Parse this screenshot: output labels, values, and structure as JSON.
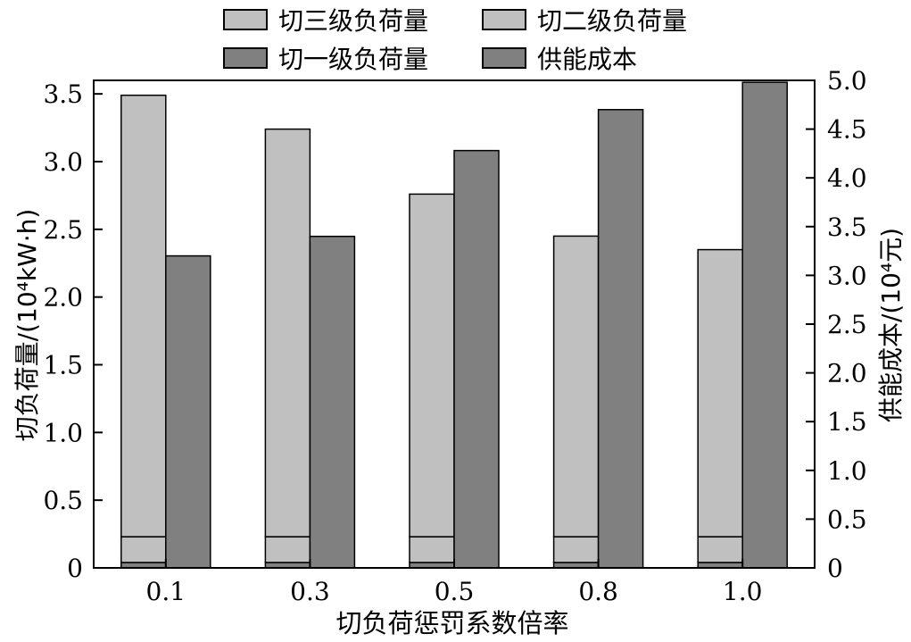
{
  "chart_data": {
    "type": "bar",
    "xlabel": "切负荷惩罚系数倍率",
    "ylabel_left": "切负荷量/(10⁴kW·h)",
    "ylabel_right": "供能成本/(10⁴元)",
    "categories": [
      "0.1",
      "0.3",
      "0.5",
      "0.8",
      "1.0"
    ],
    "left_axis": {
      "ylim": [
        0,
        3.6
      ],
      "ticks": [
        "0",
        "0.5",
        "1.0",
        "1.5",
        "2.0",
        "2.5",
        "3.0",
        "3.5"
      ],
      "tick_values": [
        0,
        0.5,
        1.0,
        1.5,
        2.0,
        2.5,
        3.0,
        3.5
      ]
    },
    "right_axis": {
      "ylim": [
        0,
        5.0
      ],
      "ticks": [
        "0",
        "0.5",
        "1.0",
        "1.5",
        "2.0",
        "2.5",
        "3.0",
        "3.5",
        "4.0",
        "4.5",
        "5.0"
      ],
      "tick_values": [
        0,
        0.5,
        1.0,
        1.5,
        2.0,
        2.5,
        3.0,
        3.5,
        4.0,
        4.5,
        5.0
      ]
    },
    "series": [
      {
        "name": "切三级负荷量",
        "axis": "left",
        "stack": "load",
        "color": "#c0c0c0",
        "values": [
          3.26,
          3.01,
          2.53,
          2.22,
          2.12
        ]
      },
      {
        "name": "切二级负荷量",
        "axis": "left",
        "stack": "load",
        "color": "#c0c0c0",
        "values": [
          0.19,
          0.19,
          0.19,
          0.19,
          0.19
        ]
      },
      {
        "name": "切一级负荷量",
        "axis": "left",
        "stack": "load",
        "color": "#808080",
        "values": [
          0.04,
          0.04,
          0.04,
          0.04,
          0.04
        ]
      },
      {
        "name": "供能成本",
        "axis": "right",
        "stack": "cost",
        "color": "#808080",
        "values": [
          3.2,
          3.4,
          4.28,
          4.7,
          4.98
        ]
      }
    ],
    "legend": [
      {
        "label": "切三级负荷量",
        "color": "#c0c0c0"
      },
      {
        "label": "切二级负荷量",
        "color": "#c0c0c0"
      },
      {
        "label": "切一级负荷量",
        "color": "#808080"
      },
      {
        "label": "供能成本",
        "color": "#808080"
      }
    ],
    "legend_position": "top"
  }
}
